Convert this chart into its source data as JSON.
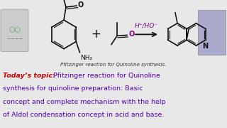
{
  "bg_color": "#e8e8e8",
  "top_bg": "#d8d8d8",
  "bottom_bg": "#ffffff",
  "caption": "Pfitzinger reaction for Quinoline synthesis.",
  "caption_color": "#333333",
  "caption_fontsize": 5.0,
  "topic_label": "Today’s topic:",
  "topic_label_color": "#cc0000",
  "topic_text_color": "#5500bb",
  "topic_fontsize": 6.8,
  "reagent_label": "H+/HO-",
  "reagent_color": "#880088",
  "struct_color": "#111111",
  "O_color": "#880088",
  "logo_color": "#bbbbbb",
  "photo_color": "#888899"
}
